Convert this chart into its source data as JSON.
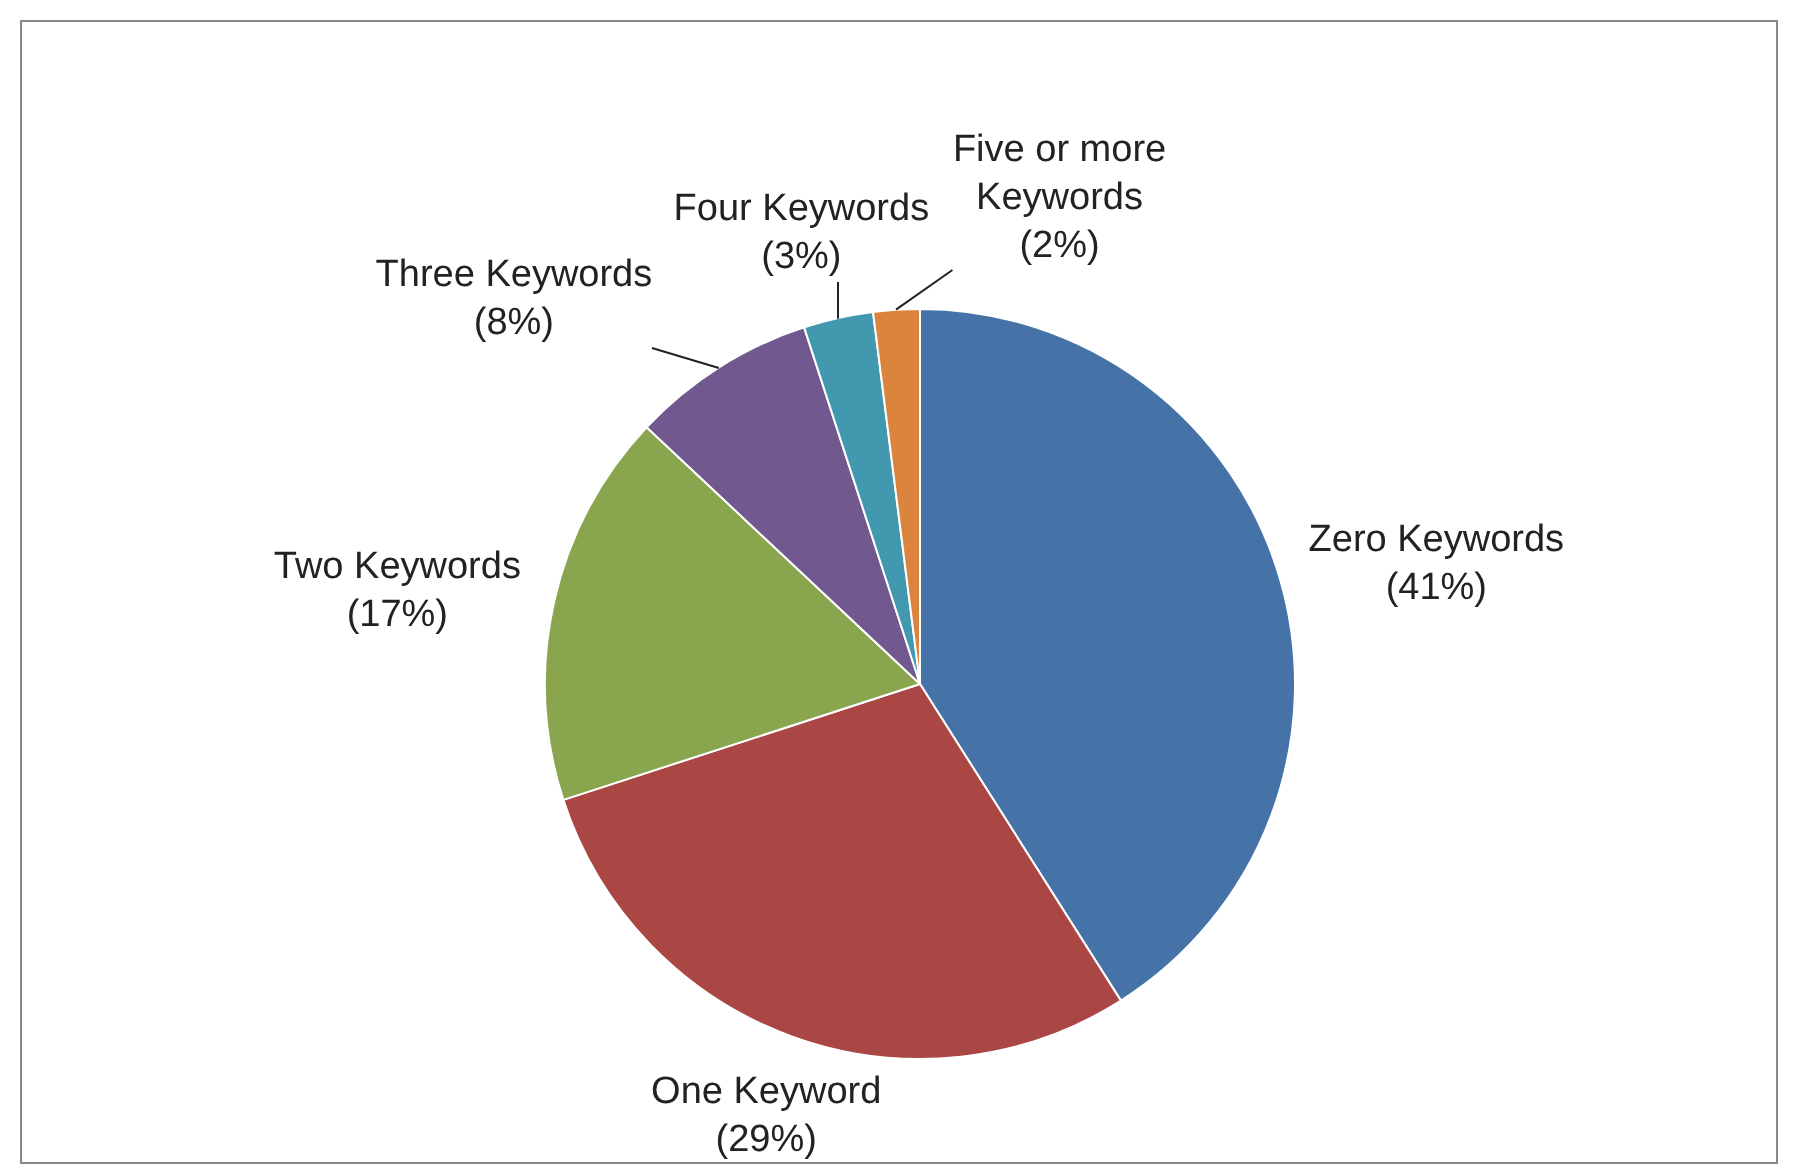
{
  "chart_data": {
    "type": "pie",
    "categories": [
      "Zero Keywords",
      "One Keyword",
      "Two Keywords",
      "Three Keywords",
      "Four Keywords",
      "Five or more Keywords"
    ],
    "values": [
      41,
      29,
      17,
      8,
      3,
      2
    ],
    "colors": [
      "#4572a7",
      "#aa4643",
      "#89a54e",
      "#71588f",
      "#4198af",
      "#db843d"
    ],
    "value_labels": [
      "(41%)",
      "(29%)",
      "(17%)",
      "(8%)",
      "(3%)",
      "(2%)"
    ],
    "legend": false
  }
}
